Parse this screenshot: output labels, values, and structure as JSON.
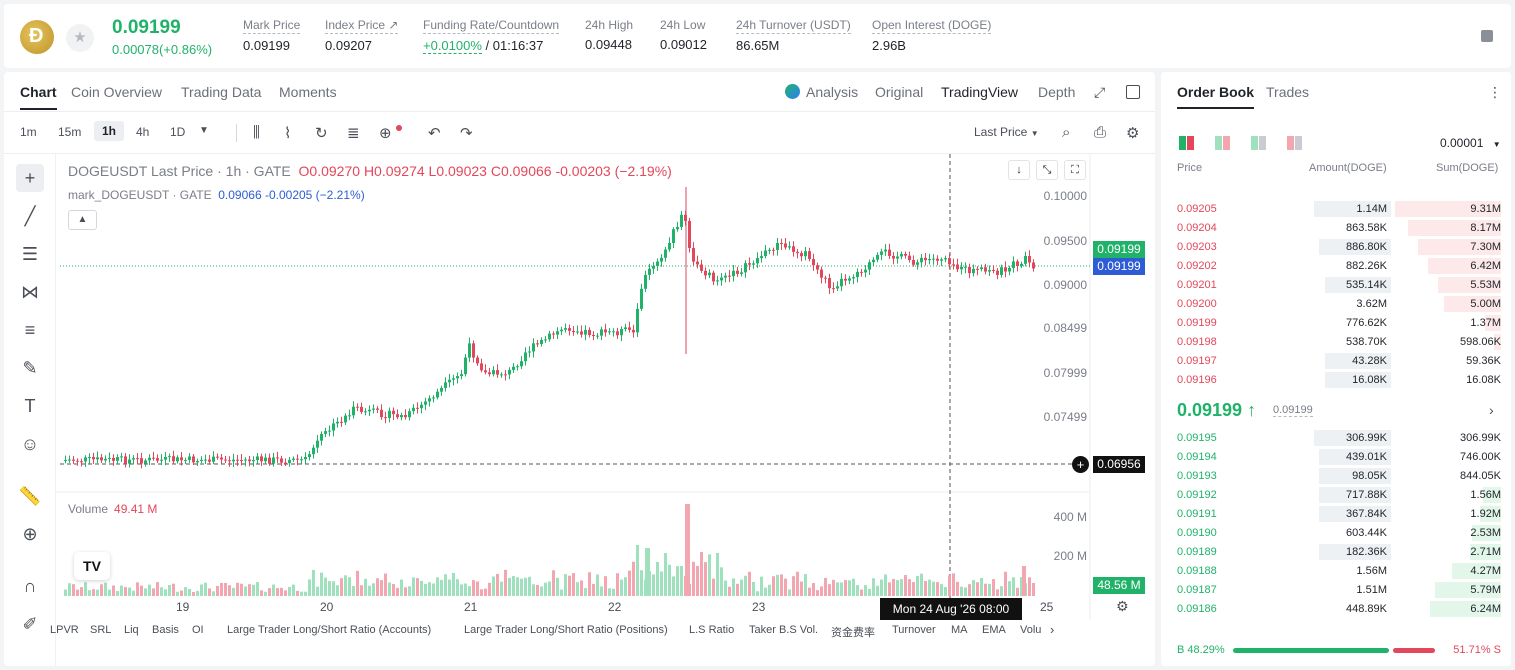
{
  "ticker": {
    "last_price": "0.09199",
    "change": "0.00078(+0.86%)"
  },
  "stats": [
    {
      "label": "Mark Price",
      "value": "0.09199"
    },
    {
      "label": "Index Price ↗",
      "value": "0.09207"
    },
    {
      "label": "Funding Rate/Countdown",
      "value": "+0.0100%",
      "value2": " / 01:16:37"
    },
    {
      "label": "24h High",
      "value": "0.09448"
    },
    {
      "label": "24h Low",
      "value": "0.09012"
    },
    {
      "label": "24h Turnover (USDT)",
      "value": "86.65M"
    },
    {
      "label": "Open Interest (DOGE)",
      "value": "2.96B"
    }
  ],
  "chart_tabs": [
    "Chart",
    "Coin Overview",
    "Trading Data",
    "Moments"
  ],
  "view_tabs": [
    "Analysis",
    "Original",
    "TradingView",
    "Depth"
  ],
  "intervals": [
    "1m",
    "15m",
    "1h",
    "4h",
    "1D"
  ],
  "last_price_select": "Last Price",
  "legend": {
    "main": "DOGEUSDT Last Price · 1h · GATE",
    "o": "O0.09270",
    "h": "H0.09274",
    "l": "L0.09023",
    "c": "C0.09066",
    "chg": "-0.00203 (−2.19%)",
    "mark": "mark_DOGEUSDT · GATE",
    "mark_vals": "0.09066 -0.00205 (−2.21%)"
  },
  "volume": {
    "label": "Volume",
    "value": "49.41 M"
  },
  "price_axis": [
    "0.10000",
    "0.09500",
    "0.09000",
    "0.08499",
    "0.07999",
    "0.07499"
  ],
  "vol_axis": [
    "400 M",
    "200 M"
  ],
  "badges": {
    "last": "0.09199",
    "mark": "0.09199",
    "cross": "0.06956",
    "vol": "48.56 M"
  },
  "x_axis": [
    "19",
    "20",
    "21",
    "22",
    "23",
    "25"
  ],
  "x_tooltip": "Mon 24 Aug '26   08:00",
  "bottom_indicators": [
    "LPVR",
    "SRL",
    "Liq",
    "Basis",
    "OI",
    "Large Trader Long/Short Ratio (Accounts)",
    "Large Trader Long/Short Ratio (Positions)",
    "L.S Ratio",
    "Taker B.S Vol.",
    "资金费率",
    "Turnover",
    "MA",
    "EMA",
    "Volu"
  ],
  "orderbook": {
    "tabs": [
      "Order Book",
      "Trades"
    ],
    "precision": "0.00001",
    "cols": [
      "Price",
      "Amount(DOGE)",
      "Sum(DOGE)"
    ],
    "asks": [
      {
        "p": "0.09205",
        "a": "1.14M",
        "s": "9.31M",
        "aw": 0.64,
        "sw": 1.0
      },
      {
        "p": "0.09204",
        "a": "863.58K",
        "s": "8.17M",
        "aw": 0.0,
        "sw": 0.88
      },
      {
        "p": "0.09203",
        "a": "886.80K",
        "s": "7.30M",
        "aw": 0.6,
        "sw": 0.78
      },
      {
        "p": "0.09202",
        "a": "882.26K",
        "s": "6.42M",
        "aw": 0.0,
        "sw": 0.69
      },
      {
        "p": "0.09201",
        "a": "535.14K",
        "s": "5.53M",
        "aw": 0.55,
        "sw": 0.59
      },
      {
        "p": "0.09200",
        "a": "3.62M",
        "s": "5.00M",
        "aw": 0.0,
        "sw": 0.54
      },
      {
        "p": "0.09199",
        "a": "776.62K",
        "s": "1.37M",
        "aw": 0.0,
        "sw": 0.15
      },
      {
        "p": "0.09198",
        "a": "538.70K",
        "s": "598.06K",
        "aw": 0.0,
        "sw": 0.07
      },
      {
        "p": "0.09197",
        "a": "43.28K",
        "s": "59.36K",
        "aw": 0.55,
        "sw": 0.0
      },
      {
        "p": "0.09196",
        "a": "16.08K",
        "s": "16.08K",
        "aw": 0.55,
        "sw": 0.0
      }
    ],
    "mid": "0.09199 ↑",
    "mark": "0.09199",
    "bids": [
      {
        "p": "0.09195",
        "a": "306.99K",
        "s": "306.99K",
        "aw": 0.64,
        "sw": 0.0
      },
      {
        "p": "0.09194",
        "a": "439.01K",
        "s": "746.00K",
        "aw": 0.6,
        "sw": 0.0
      },
      {
        "p": "0.09193",
        "a": "98.05K",
        "s": "844.05K",
        "aw": 0.6,
        "sw": 0.0
      },
      {
        "p": "0.09192",
        "a": "717.88K",
        "s": "1.56M",
        "aw": 0.6,
        "sw": 0.17
      },
      {
        "p": "0.09191",
        "a": "367.84K",
        "s": "1.92M",
        "aw": 0.6,
        "sw": 0.2
      },
      {
        "p": "0.09190",
        "a": "603.44K",
        "s": "2.53M",
        "aw": 0.0,
        "sw": 0.27
      },
      {
        "p": "0.09189",
        "a": "182.36K",
        "s": "2.71M",
        "aw": 0.6,
        "sw": 0.29
      },
      {
        "p": "0.09188",
        "a": "1.56M",
        "s": "4.27M",
        "aw": 0.0,
        "sw": 0.46
      },
      {
        "p": "0.09187",
        "a": "1.51M",
        "s": "5.79M",
        "aw": 0.0,
        "sw": 0.62
      },
      {
        "p": "0.09186",
        "a": "448.89K",
        "s": "6.24M",
        "aw": 0.0,
        "sw": 0.67
      }
    ],
    "buy_ratio": "B 48.29%",
    "sell_ratio": "51.71% S"
  },
  "colors": {
    "up": "#21b26a",
    "down": "#e3475b",
    "accent": "#2d5cd6"
  }
}
